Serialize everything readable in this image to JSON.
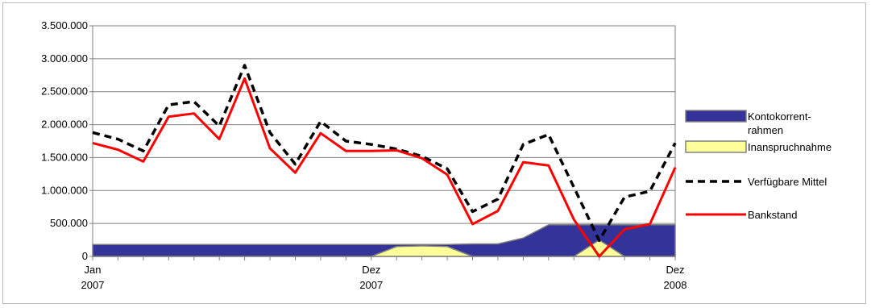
{
  "chart_data": {
    "type": "area",
    "y_ticks": [
      "3.500.000",
      "3.000.000",
      "2.500.000",
      "2.000.000",
      "1.500.000",
      "1.000.000",
      "500.000",
      "0"
    ],
    "y_tick_values": [
      3500000,
      3000000,
      2500000,
      2000000,
      1500000,
      1000000,
      500000,
      0
    ],
    "ylim": [
      0,
      3500000
    ],
    "grid": "horizontal",
    "legend_position": "right",
    "x_labels": [
      {
        "month": "Jan",
        "year": "2007",
        "index": 0
      },
      {
        "month": "Dez",
        "year": "2007",
        "index": 11
      },
      {
        "month": "Dez",
        "year": "2008",
        "index": 23
      }
    ],
    "series": [
      {
        "name": "Kontokorrent-rahmen",
        "legend_lines": [
          "Kontokorrent-",
          "rahmen"
        ],
        "kind": "area",
        "color": "#333399",
        "values": [
          180000,
          180000,
          180000,
          180000,
          180000,
          180000,
          180000,
          180000,
          180000,
          180000,
          180000,
          180000,
          180000,
          180000,
          180000,
          190000,
          190000,
          280000,
          480000,
          480000,
          480000,
          480000,
          480000,
          480000
        ]
      },
      {
        "name": "Inanspruchnahme",
        "legend_lines": [
          "Inanspruchnahme"
        ],
        "kind": "area",
        "color": "#ffff99",
        "values": [
          0,
          0,
          0,
          0,
          0,
          0,
          0,
          0,
          0,
          0,
          0,
          0,
          150000,
          160000,
          150000,
          0,
          0,
          0,
          0,
          0,
          250000,
          0,
          0,
          0
        ]
      },
      {
        "name": "Verfügbare Mittel",
        "legend_lines": [
          "Verfügbare Mittel"
        ],
        "kind": "dashed-line",
        "color": "#000000",
        "values": [
          1880000,
          1780000,
          1600000,
          2300000,
          2350000,
          1980000,
          2900000,
          1880000,
          1400000,
          2050000,
          1750000,
          1700000,
          1630000,
          1520000,
          1330000,
          680000,
          870000,
          1700000,
          1850000,
          1050000,
          240000,
          900000,
          990000,
          1720000
        ]
      },
      {
        "name": "Bankstand",
        "legend_lines": [
          "Bankstand"
        ],
        "kind": "line",
        "color": "#ff0000",
        "values": [
          1720000,
          1620000,
          1440000,
          2120000,
          2170000,
          1780000,
          2700000,
          1640000,
          1270000,
          1870000,
          1600000,
          1600000,
          1610000,
          1490000,
          1240000,
          490000,
          690000,
          1430000,
          1380000,
          560000,
          0,
          410000,
          490000,
          1350000
        ]
      }
    ]
  }
}
